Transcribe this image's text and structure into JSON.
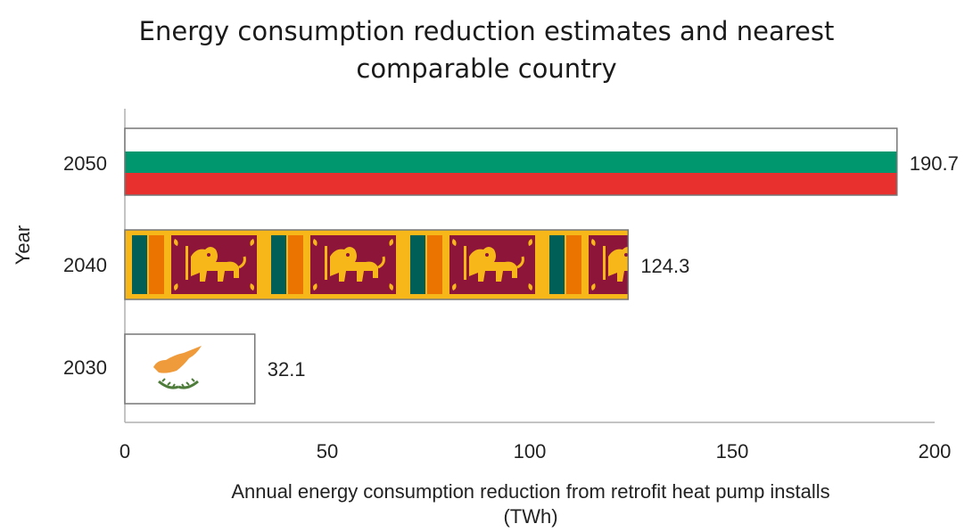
{
  "chart_data": {
    "type": "bar",
    "orientation": "horizontal",
    "title": [
      "Energy consumption reduction estimates and nearest",
      "comparable country"
    ],
    "ylabel": "Year",
    "xlabel": [
      "Annual energy consumption reduction from retrofit heat pump installs",
      "(TWh)"
    ],
    "categories": [
      "2050",
      "2040",
      "2030"
    ],
    "values": [
      190.7,
      124.3,
      32.1
    ],
    "data_labels": [
      "190.7",
      "124.3",
      "32.1"
    ],
    "bar_fills": [
      "flag-bulgaria",
      "flag-sri-lanka",
      "flag-cyprus"
    ],
    "xlim": [
      0,
      200
    ],
    "x_ticks": [
      0,
      50,
      100,
      150,
      200
    ],
    "x_tick_labels": [
      "0",
      "50",
      "100",
      "150",
      "200"
    ],
    "grid": false,
    "legend": "none"
  },
  "colors": {
    "bulgaria_white": "#ffffff",
    "bulgaria_green": "#00966e",
    "bulgaria_red": "#e8302f",
    "srilanka_gold": "#f7b718",
    "srilanka_maroon": "#8d153a",
    "srilanka_teal": "#005f56",
    "srilanka_orange": "#eb7400",
    "cyprus_copper": "#ef9b3b",
    "cyprus_olive": "#4e7c3a",
    "axis": "#b0b0b0"
  }
}
